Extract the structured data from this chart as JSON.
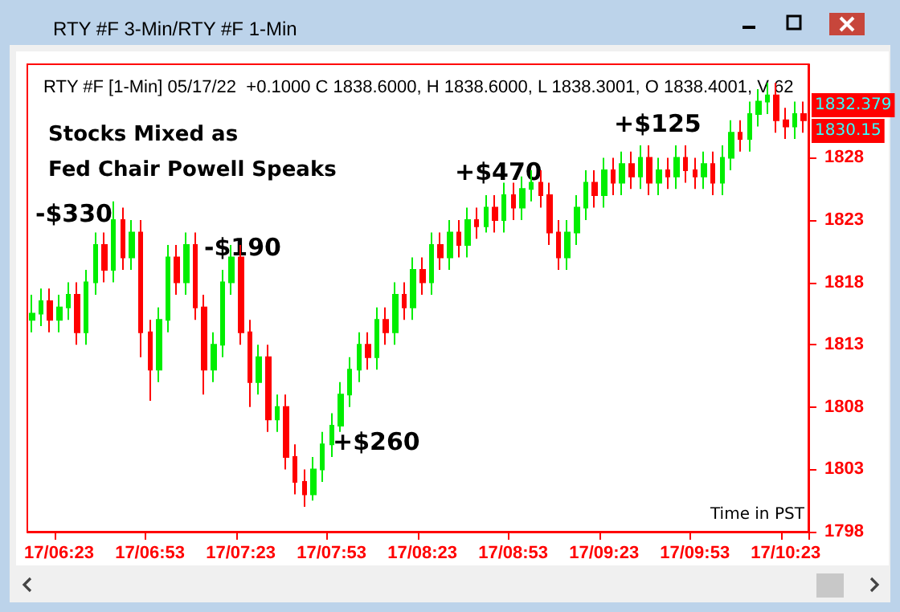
{
  "chart_data": {
    "type": "candlestick",
    "title": "RTY #F 3-Min/RTY #F 1-Min",
    "subtitle": "RTY #F [1-Min] 05/17/22  +0.1000 C 1838.6000, H 1838.6000, L 1838.3001, O 1838.4001, V 62",
    "annotations": [
      "Stocks Mixed as\nFed Chair Powell Speaks",
      "-$330",
      "-$190",
      "+$260",
      "+$470",
      "+$125",
      "Time in PST",
      "1832.379",
      "1830.15"
    ],
    "categories": [
      null,
      null,
      null,
      "17/06:23",
      null,
      null,
      null,
      null,
      null,
      null,
      null,
      null,
      null,
      "17/06:53",
      null,
      null,
      null,
      null,
      null,
      null,
      null,
      null,
      null,
      "17/07:23",
      null,
      null,
      null,
      null,
      null,
      null,
      null,
      null,
      null,
      "17/07:53",
      null,
      null,
      null,
      null,
      null,
      null,
      null,
      null,
      null,
      "17/08:23",
      null,
      null,
      null,
      null,
      null,
      null,
      null,
      null,
      null,
      "17/08:53",
      null,
      null,
      null,
      null,
      null,
      null,
      null,
      null,
      null,
      "17/09:23",
      null,
      null,
      null,
      null,
      null,
      null,
      null,
      null,
      null,
      "17/09:53",
      null,
      null,
      null,
      null,
      null,
      null,
      null,
      null,
      null,
      "17/10:23",
      null,
      null
    ],
    "ohlc": [
      [
        1815,
        1817,
        1814,
        1815.5
      ],
      [
        1815.5,
        1817.5,
        1814.5,
        1816.5
      ],
      [
        1816.5,
        1817.5,
        1814,
        1815
      ],
      [
        1815,
        1817,
        1814,
        1816
      ],
      [
        1816,
        1818,
        1815,
        1817
      ],
      [
        1817,
        1818,
        1813,
        1814
      ],
      [
        1814,
        1819,
        1813,
        1818
      ],
      [
        1818,
        1822,
        1817,
        1821
      ],
      [
        1821,
        1822,
        1818,
        1819
      ],
      [
        1819,
        1824.5,
        1818,
        1823
      ],
      [
        1823,
        1824,
        1819,
        1820
      ],
      [
        1820,
        1823,
        1819,
        1822
      ],
      [
        1822,
        1823,
        1812,
        1814
      ],
      [
        1814,
        1815,
        1808.5,
        1811
      ],
      [
        1811,
        1816,
        1810,
        1815
      ],
      [
        1815,
        1821,
        1814,
        1820
      ],
      [
        1820,
        1821,
        1817,
        1818
      ],
      [
        1818,
        1822,
        1817,
        1821
      ],
      [
        1821,
        1822,
        1815,
        1816
      ],
      [
        1816,
        1817,
        1809,
        1811
      ],
      [
        1811,
        1814,
        1810,
        1813
      ],
      [
        1813,
        1819,
        1812,
        1818
      ],
      [
        1818,
        1821,
        1817,
        1820
      ],
      [
        1820,
        1821,
        1813,
        1814
      ],
      [
        1814,
        1815,
        1808,
        1810
      ],
      [
        1810,
        1813,
        1809,
        1812
      ],
      [
        1812,
        1813,
        1806,
        1807
      ],
      [
        1807,
        1809,
        1806,
        1808
      ],
      [
        1808,
        1809,
        1803,
        1804
      ],
      [
        1804,
        1805,
        1801,
        1802
      ],
      [
        1802,
        1803,
        1800,
        1801
      ],
      [
        1801,
        1804,
        1800.5,
        1803
      ],
      [
        1803,
        1806,
        1802,
        1805
      ],
      [
        1805,
        1807.5,
        1804,
        1806.5
      ],
      [
        1806.5,
        1810,
        1806,
        1809
      ],
      [
        1809,
        1812,
        1808,
        1811
      ],
      [
        1811,
        1814,
        1810,
        1813
      ],
      [
        1813,
        1814,
        1811,
        1812
      ],
      [
        1812,
        1816,
        1811,
        1815
      ],
      [
        1815,
        1816,
        1813,
        1814
      ],
      [
        1814,
        1818,
        1813,
        1817
      ],
      [
        1817,
        1818,
        1815,
        1816
      ],
      [
        1816,
        1820,
        1815,
        1819
      ],
      [
        1819,
        1820,
        1817,
        1818
      ],
      [
        1818,
        1822,
        1817,
        1821
      ],
      [
        1821,
        1822,
        1819,
        1820
      ],
      [
        1820,
        1823,
        1819,
        1822
      ],
      [
        1822,
        1823,
        1820,
        1821
      ],
      [
        1821,
        1824,
        1820,
        1823
      ],
      [
        1823,
        1824,
        1821.5,
        1822.5
      ],
      [
        1822.5,
        1825,
        1822,
        1824
      ],
      [
        1824,
        1825,
        1822,
        1823
      ],
      [
        1823,
        1826,
        1822,
        1825
      ],
      [
        1825,
        1826,
        1823,
        1824
      ],
      [
        1824,
        1826.5,
        1823,
        1825.5
      ],
      [
        1825.5,
        1827,
        1824.5,
        1826
      ],
      [
        1826,
        1827,
        1824,
        1825
      ],
      [
        1825,
        1826,
        1821,
        1822
      ],
      [
        1822,
        1823,
        1819,
        1820
      ],
      [
        1820,
        1823,
        1819,
        1822
      ],
      [
        1822,
        1825,
        1821,
        1824
      ],
      [
        1824,
        1827,
        1823,
        1826
      ],
      [
        1826,
        1827,
        1824,
        1825
      ],
      [
        1825,
        1828,
        1824,
        1827
      ],
      [
        1827,
        1828,
        1825,
        1826
      ],
      [
        1826,
        1828.5,
        1825,
        1827.5
      ],
      [
        1827.5,
        1828.5,
        1825.5,
        1826.5
      ],
      [
        1826.5,
        1829,
        1825.5,
        1828
      ],
      [
        1828,
        1829,
        1825,
        1826
      ],
      [
        1826,
        1828,
        1825,
        1827
      ],
      [
        1827,
        1828,
        1825.5,
        1826.5
      ],
      [
        1826.5,
        1829,
        1825.5,
        1828
      ],
      [
        1828,
        1829,
        1826,
        1827
      ],
      [
        1827,
        1828,
        1825.5,
        1826.5
      ],
      [
        1826.5,
        1828.5,
        1825.5,
        1827.5
      ],
      [
        1827.5,
        1828.5,
        1825,
        1826
      ],
      [
        1826,
        1829,
        1825,
        1828
      ],
      [
        1828,
        1831,
        1827,
        1830
      ],
      [
        1830,
        1831,
        1828.5,
        1829.5
      ],
      [
        1829.5,
        1832.5,
        1828.5,
        1831.5
      ],
      [
        1831.5,
        1833.5,
        1830.5,
        1832.5
      ],
      [
        1832.5,
        1834,
        1831.5,
        1833
      ],
      [
        1833,
        1834,
        1830,
        1831
      ],
      [
        1831,
        1832,
        1829.5,
        1830.5
      ],
      [
        1830.5,
        1832.5,
        1829.5,
        1831.5
      ],
      [
        1831.5,
        1832.5,
        1830,
        1831
      ]
    ],
    "colors": [
      "#00ee00",
      "#00ee00",
      "#ff0000",
      "#00ee00",
      "#00ee00",
      "#ff0000",
      "#00ee00",
      "#00ee00",
      "#ff0000",
      "#00ee00",
      "#ff0000",
      "#00ee00",
      "#ff0000",
      "#ff0000",
      "#00ee00",
      "#00ee00",
      "#ff0000",
      "#00ee00",
      "#ff0000",
      "#ff0000",
      "#00ee00",
      "#00ee00",
      "#00ee00",
      "#ff0000",
      "#ff0000",
      "#00ee00",
      "#ff0000",
      "#00ee00",
      "#ff0000",
      "#ff0000",
      "#ff0000",
      "#00ee00",
      "#00ee00",
      "#00ee00",
      "#00ee00",
      "#00ee00",
      "#00ee00",
      "#ff0000",
      "#00ee00",
      "#ff0000",
      "#00ee00",
      "#ff0000",
      "#00ee00",
      "#ff0000",
      "#00ee00",
      "#ff0000",
      "#00ee00",
      "#ff0000",
      "#00ee00",
      "#ff0000",
      "#00ee00",
      "#ff0000",
      "#00ee00",
      "#ff0000",
      "#00ee00",
      "#00ee00",
      "#ff0000",
      "#ff0000",
      "#ff0000",
      "#00ee00",
      "#00ee00",
      "#00ee00",
      "#ff0000",
      "#00ee00",
      "#ff0000",
      "#00ee00",
      "#ff0000",
      "#00ee00",
      "#ff0000",
      "#00ee00",
      "#ff0000",
      "#00ee00",
      "#ff0000",
      "#ff0000",
      "#00ee00",
      "#ff0000",
      "#00ee00",
      "#00ee00",
      "#ff0000",
      "#00ee00",
      "#00ee00",
      "#00ee00",
      "#ff0000",
      "#ff0000",
      "#00ee00",
      "#ff0000"
    ],
    "ylim": [
      1798,
      1835.5
    ],
    "yticks": [
      1798,
      1803,
      1808,
      1813,
      1818,
      1823,
      1828
    ],
    "grid": false
  }
}
